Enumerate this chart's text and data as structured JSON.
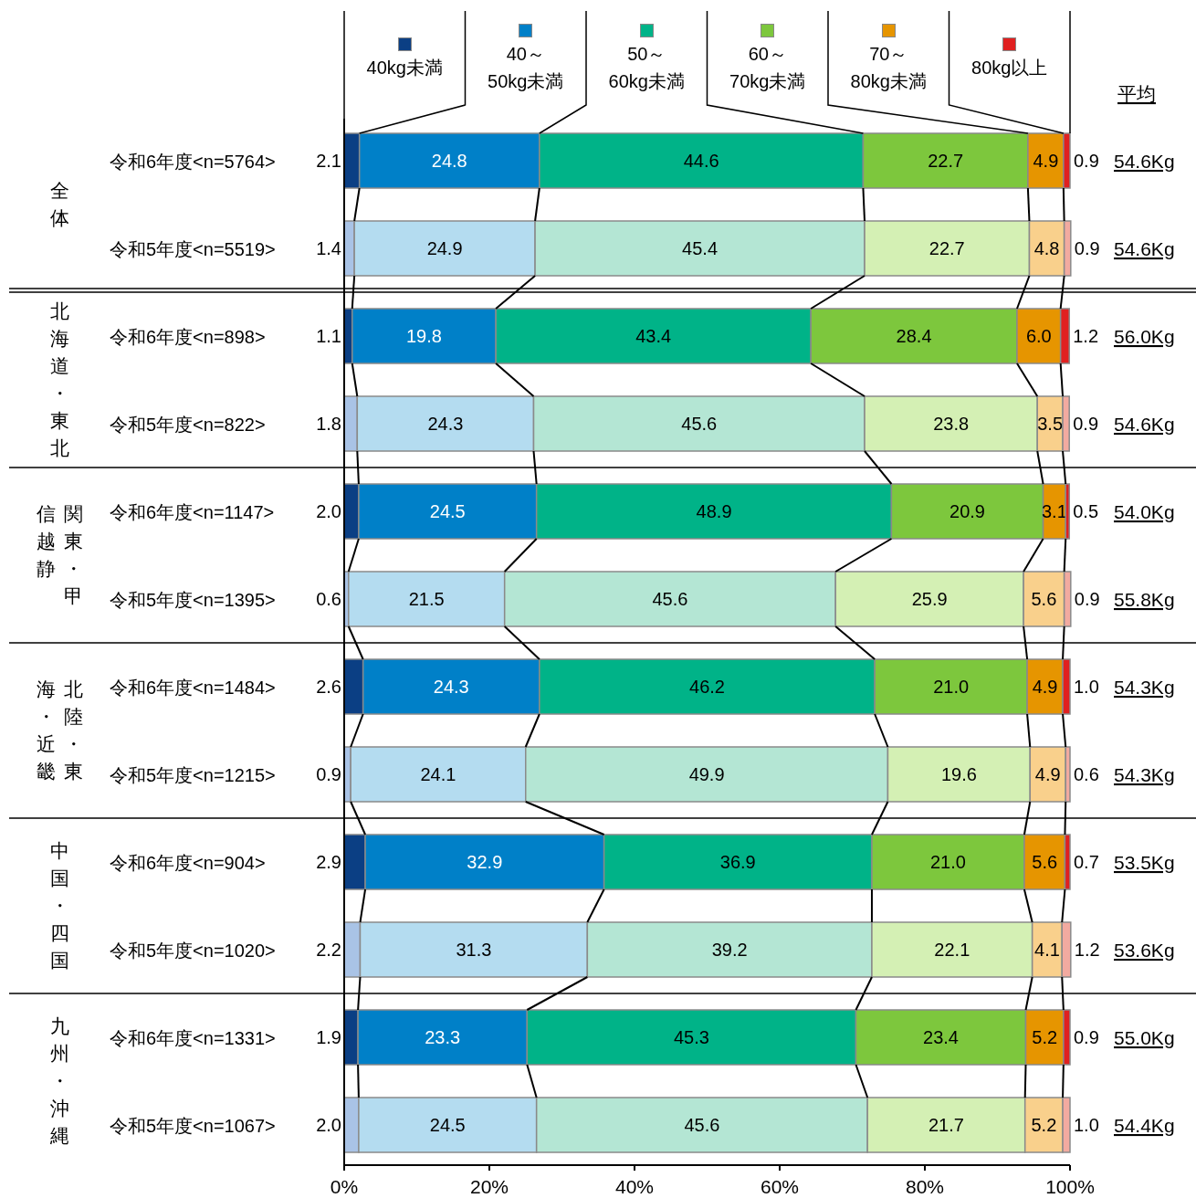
{
  "chart_data": {
    "type": "bar",
    "orientation": "horizontal",
    "stacked": true,
    "legend": "top",
    "categories": [
      "令和6年度<n=5764>",
      "令和5年度<n=5519>",
      "令和6年度<n=898>",
      "令和5年度<n=822>",
      "令和6年度<n=1147>",
      "令和5年度<n=1395>",
      "令和6年度<n=1484>",
      "令和5年度<n=1215>",
      "令和6年度<n=904>",
      "令和5年度<n=1020>",
      "令和6年度<n=1331>",
      "令和5年度<n=1067>"
    ],
    "xlim": [
      0,
      100
    ],
    "xticks": [
      {
        "value": 0,
        "label": "0%"
      },
      {
        "value": 20,
        "label": "20%"
      },
      {
        "value": 40,
        "label": "40%"
      },
      {
        "value": 60,
        "label": "60%"
      },
      {
        "value": 80,
        "label": "80%"
      },
      {
        "value": 100,
        "label": "100%"
      }
    ],
    "series": [
      {
        "name": "40kg未満",
        "colors": [
          "#0b3f84",
          "#a9c3e6",
          "#0b3f84",
          "#a9c3e6",
          "#0b3f84",
          "#a9c3e6",
          "#0b3f84",
          "#a9c3e6",
          "#0b3f84",
          "#a9c3e6",
          "#0b3f84",
          "#a9c3e6"
        ],
        "values": [
          2.1,
          1.4,
          1.1,
          1.8,
          2.0,
          0.6,
          2.6,
          0.9,
          2.9,
          2.2,
          1.9,
          2.0
        ],
        "value_labels": [
          "2.1",
          "1.4",
          "1.1",
          "1.8",
          "2.0",
          "0.6",
          "2.6",
          "0.9",
          "2.9",
          "2.2",
          "1.9",
          "2.0"
        ]
      },
      {
        "name": "40～\n50kg未満",
        "colors": [
          "#0080c8",
          "#b4dcf0",
          "#0080c8",
          "#b4dcf0",
          "#0080c8",
          "#b4dcf0",
          "#0080c8",
          "#b4dcf0",
          "#0080c8",
          "#b4dcf0",
          "#0080c8",
          "#b4dcf0"
        ],
        "values": [
          24.8,
          24.9,
          19.8,
          24.3,
          24.5,
          21.5,
          24.3,
          24.1,
          32.9,
          31.3,
          23.3,
          24.5
        ],
        "value_labels": [
          "24.8",
          "24.9",
          "19.8",
          "24.3",
          "24.5",
          "21.5",
          "24.3",
          "24.1",
          "32.9",
          "31.3",
          "23.3",
          "24.5"
        ]
      },
      {
        "name": "50～\n60kg未満",
        "colors": [
          "#00b388",
          "#b4e6d4",
          "#00b388",
          "#b4e6d4",
          "#00b388",
          "#b4e6d4",
          "#00b388",
          "#b4e6d4",
          "#00b388",
          "#b4e6d4",
          "#00b388",
          "#b4e6d4"
        ],
        "values": [
          44.6,
          45.4,
          43.4,
          45.6,
          48.9,
          45.6,
          46.2,
          49.9,
          36.9,
          39.2,
          45.3,
          45.6
        ],
        "value_labels": [
          "44.6",
          "45.4",
          "43.4",
          "45.6",
          "48.9",
          "45.6",
          "46.2",
          "49.9",
          "36.9",
          "39.2",
          "45.3",
          "45.6"
        ]
      },
      {
        "name": "60～\n70kg未満",
        "colors": [
          "#7dc73d",
          "#d4f0b4",
          "#7dc73d",
          "#d4f0b4",
          "#7dc73d",
          "#d4f0b4",
          "#7dc73d",
          "#d4f0b4",
          "#7dc73d",
          "#d4f0b4",
          "#7dc73d",
          "#d4f0b4"
        ],
        "values": [
          22.7,
          22.7,
          28.4,
          23.8,
          20.9,
          25.9,
          21.0,
          19.6,
          21.0,
          22.1,
          23.4,
          21.7
        ],
        "value_labels": [
          "22.7",
          "22.7",
          "28.4",
          "23.8",
          "20.9",
          "25.9",
          "21.0",
          "19.6",
          "21.0",
          "22.1",
          "23.4",
          "21.7"
        ]
      },
      {
        "name": "70～\n80kg未満",
        "colors": [
          "#e69500",
          "#f9d08c",
          "#e69500",
          "#f9d08c",
          "#e69500",
          "#f9d08c",
          "#e69500",
          "#f9d08c",
          "#e69500",
          "#f9d08c",
          "#e69500",
          "#f9d08c"
        ],
        "values": [
          4.9,
          4.8,
          6.0,
          3.5,
          3.1,
          5.6,
          4.9,
          4.9,
          5.6,
          4.1,
          5.2,
          5.2
        ],
        "value_labels": [
          "4.9",
          "4.8",
          "6.0",
          "3.5",
          "3.1",
          "5.6",
          "4.9",
          "4.9",
          "5.6",
          "4.1",
          "5.2",
          "5.2"
        ]
      },
      {
        "name": "80kg以上",
        "colors": [
          "#e02020",
          "#f2aaa0",
          "#e02020",
          "#f2aaa0",
          "#e02020",
          "#f2aaa0",
          "#e02020",
          "#f2aaa0",
          "#e02020",
          "#f2aaa0",
          "#e02020",
          "#f2aaa0"
        ],
        "values": [
          0.9,
          0.9,
          1.2,
          0.9,
          0.5,
          0.9,
          1.0,
          0.6,
          0.7,
          1.2,
          0.9,
          1.0
        ],
        "value_labels": [
          "0.9",
          "0.9",
          "1.2",
          "0.9",
          "0.5",
          "0.9",
          "1.0",
          "0.6",
          "0.7",
          "1.2",
          "0.9",
          "1.0"
        ]
      }
    ],
    "annotations": [
      "平均",
      "54.6Kg",
      "54.6Kg",
      "56.0Kg",
      "54.6Kg",
      "54.0Kg",
      "55.8Kg",
      "54.3Kg",
      "54.3Kg",
      "53.5Kg",
      "53.6Kg",
      "55.0Kg",
      "54.4Kg",
      "全体",
      "北海道・東北",
      "関東・甲信越静",
      "北陸・東海・近畿",
      "中国・四国",
      "九州・沖縄"
    ]
  }
}
